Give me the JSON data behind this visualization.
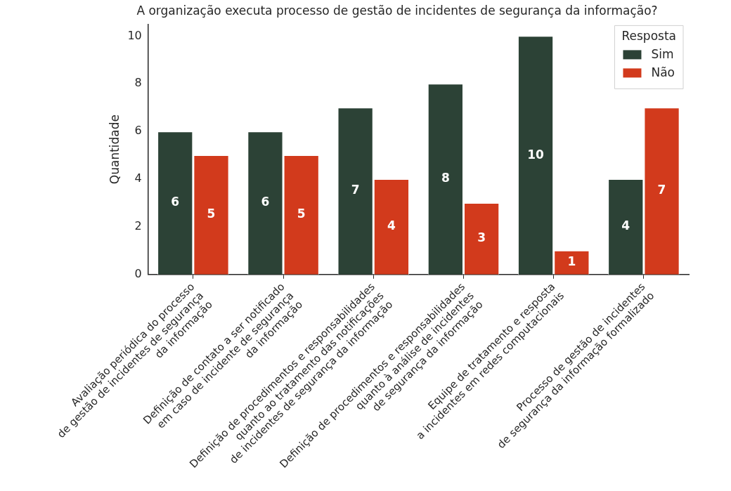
{
  "chart_data": {
    "type": "bar",
    "title": "A organização executa processo de gestão de incidentes de segurança da informação?",
    "ylabel": "Quantidade",
    "legend_title": "Resposta",
    "categories": [
      "Avaliação periódica do processo\nde gestão de incidentes de segurança\nda informação",
      "Definição de contato a ser notificado\nem caso de incidente de segurança\nda informação",
      "Definição de procedimentos e responsabilidades\nquanto ao tratamento das notificações\nde incidentes de segurança da informação",
      "Definição de procedimentos e responsabilidades\nquanto à análise de incidentes\nde segurança da informação",
      "Equipe de tratamento e resposta\na incidentes em redes computacionais",
      "Processo de gestão de incidentes\nde segurança da informação formalizado"
    ],
    "series": [
      {
        "name": "Sim",
        "color": "#2c4236",
        "values": [
          6,
          6,
          7,
          8,
          10,
          4
        ]
      },
      {
        "name": "Não",
        "color": "#d23a1c",
        "values": [
          5,
          5,
          4,
          3,
          1,
          7
        ]
      }
    ],
    "ylim": [
      0,
      10.5
    ],
    "yticks": [
      0,
      2,
      4,
      6,
      8,
      10
    ],
    "grid": false,
    "legend": "top right",
    "data_labels": true
  }
}
